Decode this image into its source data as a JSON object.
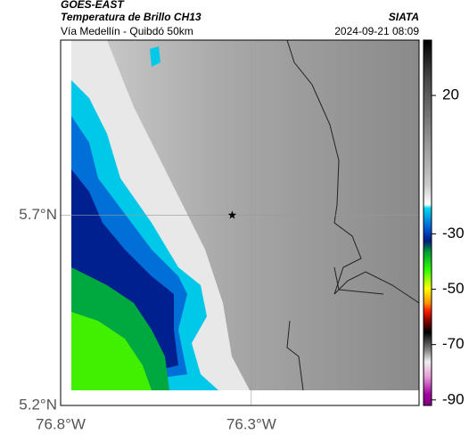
{
  "header": {
    "title": "GOES-EAST",
    "subtitle": "Temperatura de Brillo CH13",
    "source": "SIATA",
    "route": "Vía Medellín - Quibdó 50km",
    "datetime": "2024-09-21 08:09"
  },
  "map": {
    "xlim": [
      -76.8,
      -75.86
    ],
    "ylim": [
      5.2,
      6.16
    ],
    "xticks": [
      {
        "value": -76.8,
        "label": "76.8°W"
      },
      {
        "value": -76.3,
        "label": "76.3°W"
      }
    ],
    "yticks": [
      {
        "value": 5.2,
        "label": "5.2°N"
      },
      {
        "value": 5.7,
        "label": "5.7°N"
      }
    ],
    "grid": true,
    "marker": {
      "lon": -76.35,
      "lat": 5.7
    }
  },
  "colorbar": {
    "range": [
      40,
      -92
    ],
    "ticks": [
      20,
      -30,
      -50,
      -70,
      -90
    ]
  }
}
